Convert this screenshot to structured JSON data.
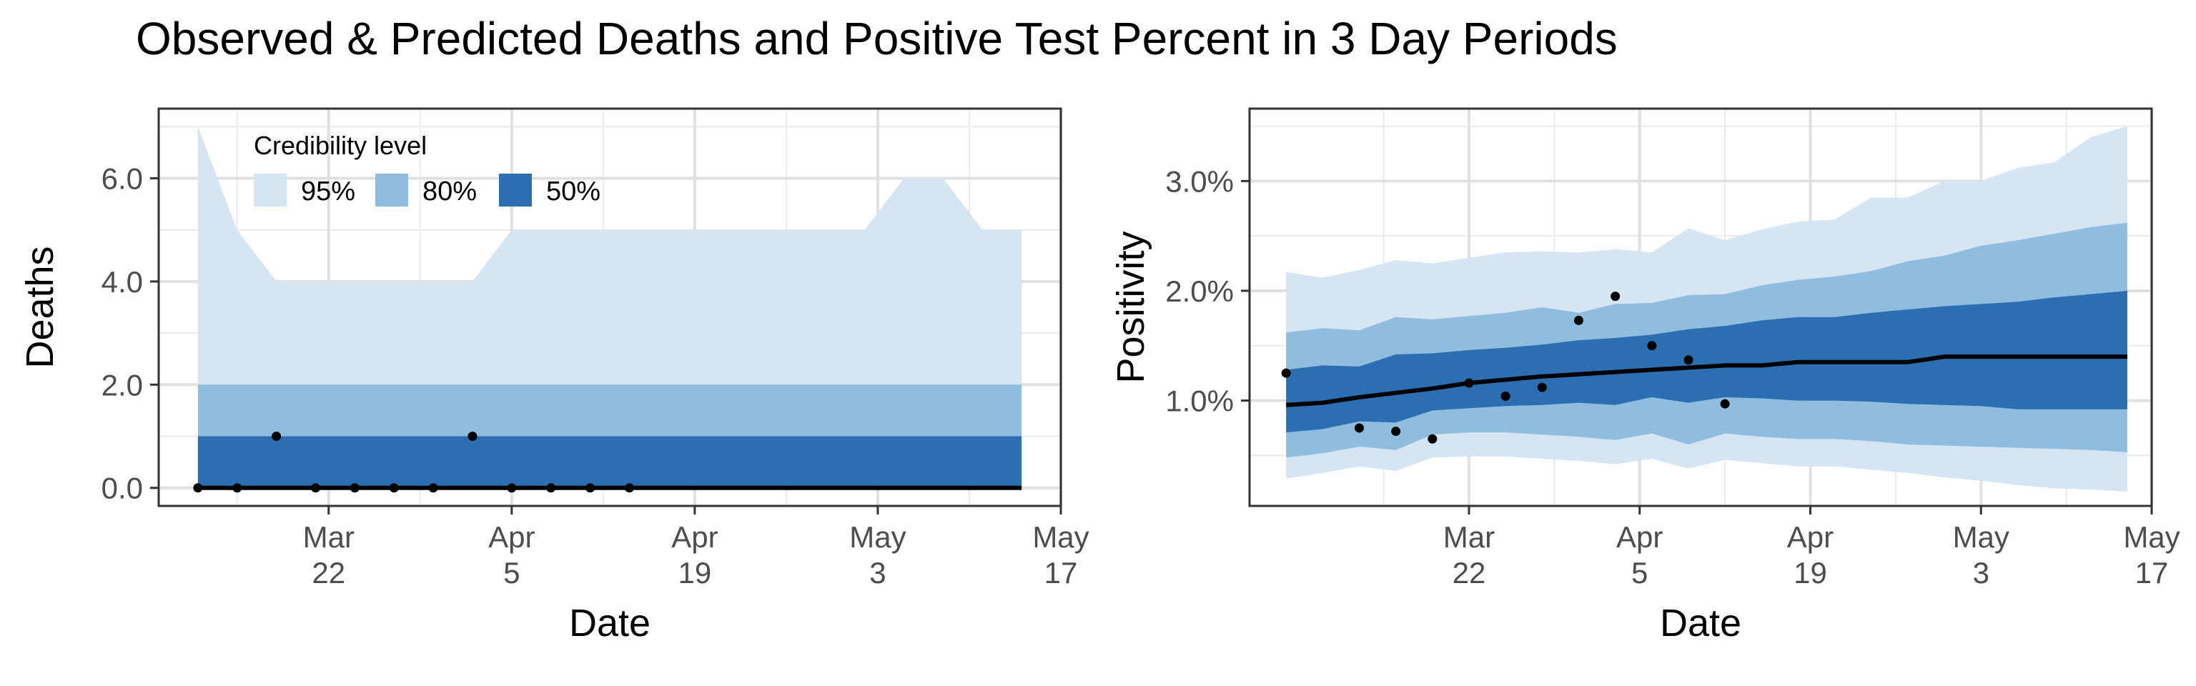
{
  "title": "Observed & Predicted Deaths and Positive Test Percent in 3 Day Periods",
  "colors": {
    "band95": "#d6e5f4",
    "band80": "#90bddd",
    "band50": "#2b6fb2",
    "median": "#000000",
    "points": "#000000"
  },
  "legend": {
    "title": "Credibility level",
    "items": [
      {
        "label": "95%",
        "color": "#d6e5f4"
      },
      {
        "label": "80%",
        "color": "#90bddd"
      },
      {
        "label": "50%",
        "color": "#2b6fb2"
      }
    ]
  },
  "chart_data": [
    {
      "type": "area",
      "xlabel": "Date",
      "ylabel": "Deaths",
      "xlim": [
        "2020-03-09",
        "2020-05-17"
      ],
      "ylim": [
        -0.35,
        7.35
      ],
      "x_ticks": [
        {
          "date": "2020-03-22",
          "line1": "Mar",
          "line2": "22"
        },
        {
          "date": "2020-04-05",
          "line1": "Apr",
          "line2": "5"
        },
        {
          "date": "2020-04-19",
          "line1": "Apr",
          "line2": "19"
        },
        {
          "date": "2020-05-03",
          "line1": "May",
          "line2": "3"
        },
        {
          "date": "2020-05-17",
          "line1": "May",
          "line2": "17"
        }
      ],
      "y_ticks": [
        {
          "value": 0,
          "label": "0.0"
        },
        {
          "value": 2,
          "label": "2.0"
        },
        {
          "value": 4,
          "label": "4.0"
        },
        {
          "value": 6,
          "label": "6.0"
        }
      ],
      "grid": true,
      "legend_position": "top-left",
      "band_x": [
        "2020-03-12",
        "2020-03-15",
        "2020-03-18",
        "2020-03-21",
        "2020-03-24",
        "2020-03-27",
        "2020-03-30",
        "2020-04-02",
        "2020-04-05",
        "2020-04-08",
        "2020-04-11",
        "2020-04-14",
        "2020-04-17",
        "2020-04-20",
        "2020-04-23",
        "2020-04-26",
        "2020-04-29",
        "2020-05-02",
        "2020-05-05",
        "2020-05-08",
        "2020-05-11",
        "2020-05-14"
      ],
      "bands": {
        "95": {
          "lower": [
            0,
            0,
            0,
            0,
            0,
            0,
            0,
            0,
            0,
            0,
            0,
            0,
            0,
            0,
            0,
            0,
            0,
            0,
            0,
            0,
            0,
            0
          ],
          "upper": [
            7,
            5,
            4,
            4,
            4,
            4,
            4,
            4,
            5,
            5,
            5,
            5,
            5,
            5,
            5,
            5,
            5,
            5,
            6,
            6,
            5,
            5
          ]
        },
        "80": {
          "lower": [
            0,
            0,
            0,
            0,
            0,
            0,
            0,
            0,
            0,
            0,
            0,
            0,
            0,
            0,
            0,
            0,
            0,
            0,
            0,
            0,
            0,
            0
          ],
          "upper": [
            2,
            2,
            2,
            2,
            2,
            2,
            2,
            2,
            2,
            2,
            2,
            2,
            2,
            2,
            2,
            2,
            2,
            2,
            2,
            2,
            2,
            2
          ]
        },
        "50": {
          "lower": [
            0,
            0,
            0,
            0,
            0,
            0,
            0,
            0,
            0,
            0,
            0,
            0,
            0,
            0,
            0,
            0,
            0,
            0,
            0,
            0,
            0,
            0
          ],
          "upper": [
            1,
            1,
            1,
            1,
            1,
            1,
            1,
            1,
            1,
            1,
            1,
            1,
            1,
            1,
            1,
            1,
            1,
            1,
            1,
            1,
            1,
            1
          ]
        }
      },
      "median": {
        "x": [
          "2020-03-12",
          "2020-05-14"
        ],
        "y": [
          0,
          0
        ]
      },
      "observed": {
        "x": [
          "2020-03-12",
          "2020-03-15",
          "2020-03-18",
          "2020-03-21",
          "2020-03-24",
          "2020-03-27",
          "2020-03-30",
          "2020-04-02",
          "2020-04-05",
          "2020-04-08",
          "2020-04-11",
          "2020-04-14"
        ],
        "y": [
          0,
          0,
          1,
          0,
          0,
          0,
          0,
          1,
          0,
          0,
          0,
          0
        ]
      }
    },
    {
      "type": "area",
      "xlabel": "Date",
      "ylabel": "Positivity",
      "xlim": [
        "2020-03-04",
        "2020-05-17"
      ],
      "ylim": [
        0.04,
        3.66
      ],
      "x_ticks": [
        {
          "date": "2020-03-22",
          "line1": "Mar",
          "line2": "22"
        },
        {
          "date": "2020-04-05",
          "line1": "Apr",
          "line2": "5"
        },
        {
          "date": "2020-04-19",
          "line1": "Apr",
          "line2": "19"
        },
        {
          "date": "2020-05-03",
          "line1": "May",
          "line2": "3"
        },
        {
          "date": "2020-05-17",
          "line1": "May",
          "line2": "17"
        }
      ],
      "y_ticks": [
        {
          "value": 1,
          "label": "1.0%"
        },
        {
          "value": 2,
          "label": "2.0%"
        },
        {
          "value": 3,
          "label": "3.0%"
        }
      ],
      "grid": true,
      "band_x": [
        "2020-03-07",
        "2020-03-10",
        "2020-03-13",
        "2020-03-16",
        "2020-03-19",
        "2020-03-22",
        "2020-03-25",
        "2020-03-28",
        "2020-03-31",
        "2020-04-03",
        "2020-04-06",
        "2020-04-09",
        "2020-04-12",
        "2020-04-15",
        "2020-04-18",
        "2020-04-21",
        "2020-04-24",
        "2020-04-27",
        "2020-04-30",
        "2020-05-03",
        "2020-05-06",
        "2020-05-09",
        "2020-05-12",
        "2020-05-15"
      ],
      "bands": {
        "95": {
          "lower": [
            0.29,
            0.34,
            0.4,
            0.36,
            0.48,
            0.49,
            0.49,
            0.47,
            0.45,
            0.42,
            0.47,
            0.38,
            0.46,
            0.43,
            0.4,
            0.4,
            0.37,
            0.34,
            0.3,
            0.27,
            0.23,
            0.2,
            0.19,
            0.17
          ],
          "upper": [
            2.17,
            2.12,
            2.19,
            2.28,
            2.25,
            2.3,
            2.35,
            2.36,
            2.35,
            2.38,
            2.35,
            2.57,
            2.46,
            2.56,
            2.63,
            2.65,
            2.85,
            2.85,
            3.0,
            3.0,
            3.12,
            3.17,
            3.4,
            3.5
          ]
        },
        "80": {
          "lower": [
            0.48,
            0.52,
            0.58,
            0.55,
            0.69,
            0.71,
            0.71,
            0.69,
            0.67,
            0.64,
            0.7,
            0.6,
            0.7,
            0.67,
            0.65,
            0.65,
            0.63,
            0.6,
            0.59,
            0.58,
            0.57,
            0.56,
            0.55,
            0.53
          ],
          "upper": [
            1.62,
            1.66,
            1.64,
            1.76,
            1.74,
            1.77,
            1.8,
            1.85,
            1.8,
            1.88,
            1.89,
            1.96,
            1.97,
            2.05,
            2.1,
            2.13,
            2.18,
            2.27,
            2.32,
            2.41,
            2.46,
            2.52,
            2.58,
            2.62
          ]
        },
        "50": {
          "lower": [
            0.71,
            0.74,
            0.81,
            0.8,
            0.91,
            0.93,
            0.95,
            0.96,
            0.98,
            0.96,
            1.03,
            0.98,
            1.03,
            1.02,
            1.0,
            1.0,
            0.99,
            0.97,
            0.96,
            0.95,
            0.92,
            0.92,
            0.92,
            0.92
          ],
          "upper": [
            1.28,
            1.32,
            1.31,
            1.42,
            1.43,
            1.46,
            1.48,
            1.51,
            1.55,
            1.57,
            1.6,
            1.65,
            1.68,
            1.73,
            1.76,
            1.76,
            1.8,
            1.83,
            1.86,
            1.88,
            1.9,
            1.94,
            1.97,
            2.0
          ]
        }
      },
      "median": {
        "x": [
          "2020-03-07",
          "2020-03-10",
          "2020-03-13",
          "2020-03-16",
          "2020-03-19",
          "2020-03-22",
          "2020-03-25",
          "2020-03-28",
          "2020-03-31",
          "2020-04-03",
          "2020-04-06",
          "2020-04-09",
          "2020-04-12",
          "2020-04-15",
          "2020-04-18",
          "2020-04-21",
          "2020-04-24",
          "2020-04-27",
          "2020-04-30",
          "2020-05-03",
          "2020-05-06",
          "2020-05-09",
          "2020-05-12",
          "2020-05-15"
        ],
        "y": [
          0.96,
          0.98,
          1.03,
          1.07,
          1.11,
          1.16,
          1.19,
          1.22,
          1.24,
          1.26,
          1.28,
          1.3,
          1.32,
          1.32,
          1.35,
          1.35,
          1.35,
          1.35,
          1.4,
          1.4,
          1.4,
          1.4,
          1.4,
          1.4
        ]
      },
      "observed": {
        "x": [
          "2020-03-07",
          "2020-03-13",
          "2020-03-16",
          "2020-03-19",
          "2020-03-22",
          "2020-03-25",
          "2020-03-28",
          "2020-03-31",
          "2020-04-03",
          "2020-04-06",
          "2020-04-09",
          "2020-04-12"
        ],
        "y": [
          1.25,
          0.75,
          0.72,
          0.65,
          1.16,
          1.04,
          1.12,
          1.73,
          1.95,
          1.5,
          1.37,
          0.97
        ]
      }
    }
  ]
}
